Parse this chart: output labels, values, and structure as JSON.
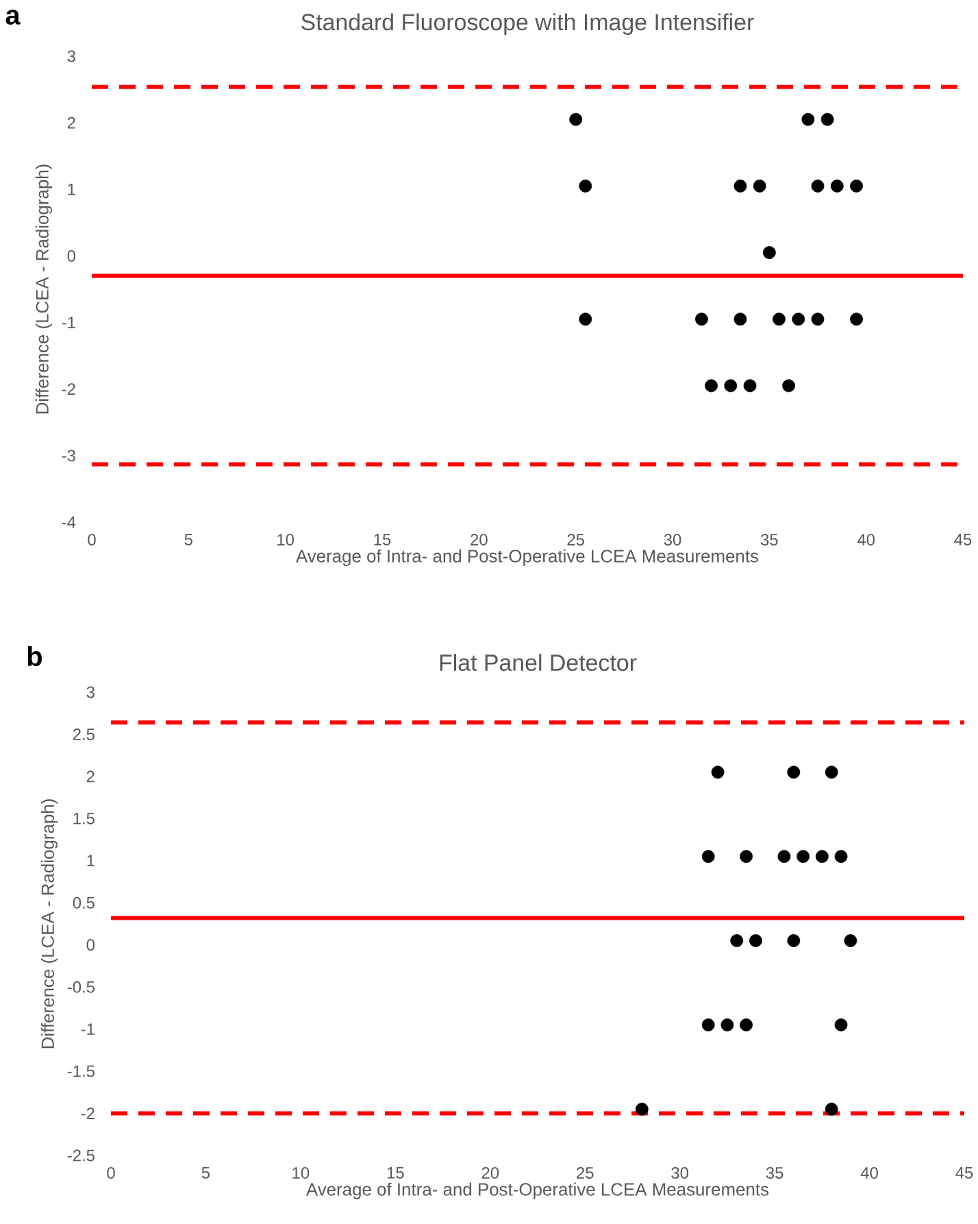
{
  "chart_data": [
    {
      "type": "scatter",
      "title": "Standard Fluoroscope with Image Intensifier",
      "xlabel": "Average of Intra- and Post-Operative LCEA Measurements",
      "ylabel": "Difference (LCEA - Radiograph)",
      "annotations": [
        "a"
      ],
      "grid": false,
      "xlim": [
        0,
        45
      ],
      "ylim": [
        -4,
        3
      ],
      "xticks": [
        0,
        5,
        10,
        15,
        20,
        25,
        30,
        35,
        40,
        45
      ],
      "yticks": [
        -4,
        -3,
        -2,
        -1,
        0,
        1,
        2,
        3
      ],
      "series": [
        {
          "color": "#000000",
          "x": [
            25,
            37,
            38,
            25.5,
            33.5,
            34.5,
            37.5,
            38.5,
            39.5,
            35,
            25.5,
            31.5,
            33.5,
            35.5,
            36.5,
            37.5,
            39.5,
            32,
            33,
            34,
            36
          ],
          "values": [
            2.05,
            2.05,
            2.05,
            1.05,
            1.05,
            1.05,
            1.05,
            1.05,
            1.05,
            0.05,
            -0.95,
            -0.95,
            -0.95,
            -0.95,
            -0.95,
            -0.95,
            -0.95,
            -1.95,
            -1.95,
            -1.95,
            -1.95
          ]
        }
      ],
      "ref_lines": [
        {
          "axis": "y",
          "value": 2.54,
          "color": "#ff0000",
          "line_style": "dashed"
        },
        {
          "axis": "y",
          "value": -0.3,
          "color": "#ff0000",
          "line_style": "solid"
        },
        {
          "axis": "y",
          "value": -3.13,
          "color": "#ff0000",
          "line_style": "dashed"
        }
      ]
    },
    {
      "type": "scatter",
      "title": "Flat Panel Detector",
      "xlabel": "Average of Intra- and Post-Operative LCEA Measurements",
      "ylabel": "Difference (LCEA - Radiograph)",
      "annotations": [
        "b"
      ],
      "grid": false,
      "xlim": [
        0,
        45
      ],
      "ylim": [
        -2.5,
        3
      ],
      "xticks": [
        0,
        5,
        10,
        15,
        20,
        25,
        30,
        35,
        40,
        45
      ],
      "yticks": [
        -2.5,
        -2,
        -1.5,
        -1,
        -0.5,
        0,
        0.5,
        1,
        1.5,
        2,
        2.5,
        3
      ],
      "series": [
        {
          "color": "#000000",
          "x": [
            32,
            36,
            38,
            31.5,
            33.5,
            35.5,
            36.5,
            37.5,
            38.5,
            33,
            34,
            36,
            39,
            31.5,
            32.5,
            33.5,
            38.5,
            28,
            38
          ],
          "values": [
            2.05,
            2.05,
            2.05,
            1.05,
            1.05,
            1.05,
            1.05,
            1.05,
            1.05,
            0.05,
            0.05,
            0.05,
            0.05,
            -0.95,
            -0.95,
            -0.95,
            -0.95,
            -1.95,
            -1.95
          ]
        }
      ],
      "ref_lines": [
        {
          "axis": "y",
          "value": 2.64,
          "color": "#ff0000",
          "line_style": "dashed"
        },
        {
          "axis": "y",
          "value": 0.32,
          "color": "#ff0000",
          "line_style": "solid"
        },
        {
          "axis": "y",
          "value": -2.0,
          "color": "#ff0000",
          "line_style": "dashed"
        }
      ]
    }
  ]
}
